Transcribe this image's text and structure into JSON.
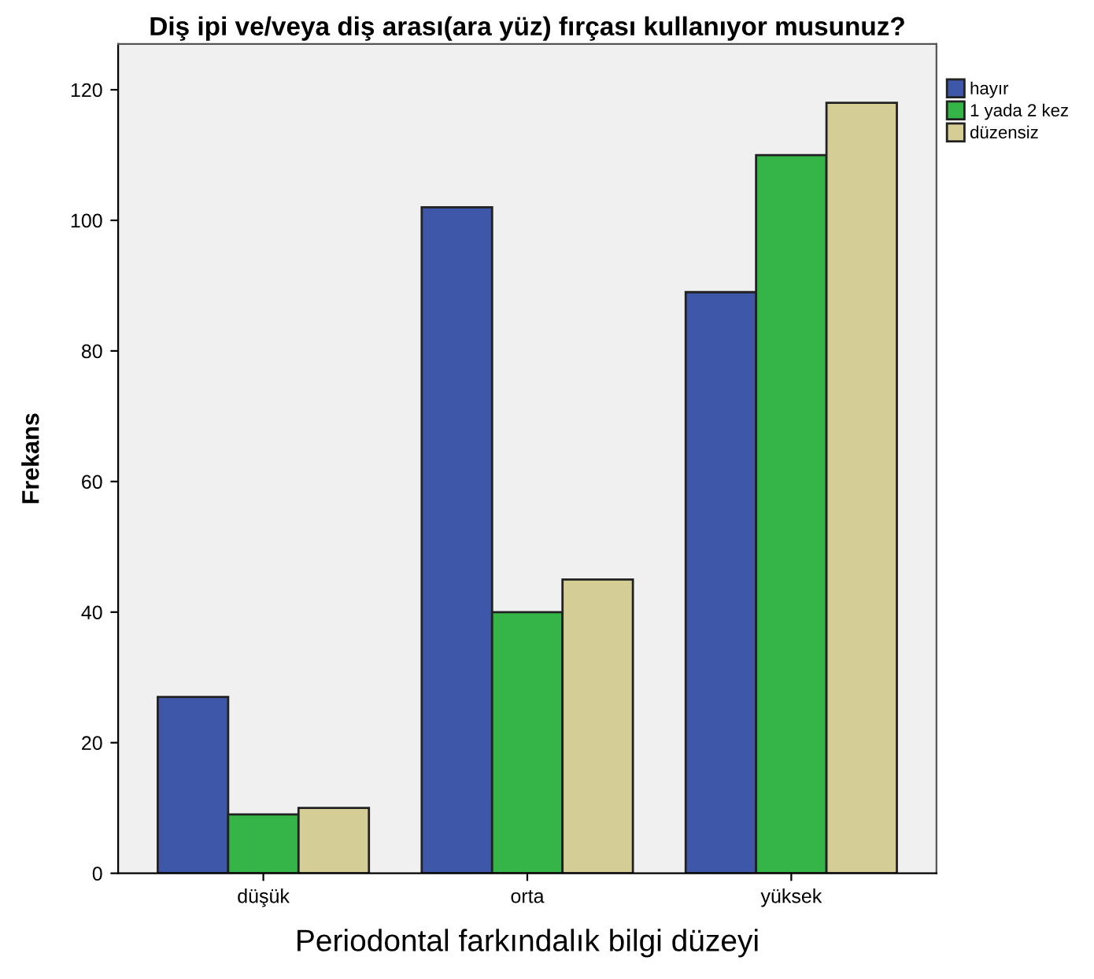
{
  "chart_data": {
    "type": "bar",
    "title": "Diş ipi ve/veya diş arası(ara yüz) fırçası kullanıyor musunuz?",
    "xlabel": "Periodontal farkındalık bilgi düzeyi",
    "ylabel": "Frekans",
    "categories": [
      "düşük",
      "orta",
      "yüksek"
    ],
    "series": [
      {
        "name": "hayır",
        "color": "#3f57a8",
        "values": [
          27,
          102,
          89
        ]
      },
      {
        "name": "1 yada 2 kez",
        "color": "#35b547",
        "values": [
          9,
          40,
          110
        ]
      },
      {
        "name": "düzensiz",
        "color": "#d5cd96",
        "values": [
          10,
          45,
          118
        ]
      }
    ],
    "ylim": [
      0,
      127
    ],
    "yticks": [
      0,
      20,
      40,
      60,
      80,
      100,
      120
    ],
    "grid": false,
    "legend": "top right"
  }
}
